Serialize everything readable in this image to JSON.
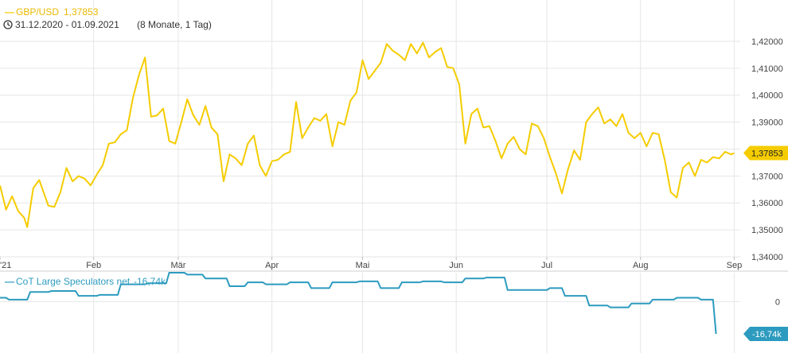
{
  "colors": {
    "main_series": "#f5cc00",
    "sub_series": "#2d9bbf",
    "grid": "#e6e6e6",
    "axis_text": "#444444",
    "legend_main_text": "#e9b800",
    "legend_date_text": "#333333"
  },
  "legend": {
    "marker_main": "—",
    "series_name": "GBP/USD",
    "last_value": "1,37853",
    "clock_icon": "clock-icon",
    "date_range": "31.12.2020 - 01.09.2021",
    "period": "(8 Monate, 1 Tag)",
    "marker_sub": "—",
    "sub_series_name": "CoT Large Speculators net",
    "sub_last_value": "-16,74k"
  },
  "last_price_tag": "1,37853",
  "sub_last_tag": "-16,74k",
  "chart_data": [
    {
      "type": "line",
      "series": [
        {
          "name": "GBP/USD"
        }
      ],
      "x_ticks": [
        "'21",
        "Feb",
        "Mär",
        "Apr",
        "Mai",
        "Jun",
        "Jul",
        "Aug",
        "Sep"
      ],
      "x_tick_days": [
        0,
        31,
        59,
        90,
        120,
        151,
        181,
        212,
        243
      ],
      "y_ticks": [
        "1,34000",
        "1,35000",
        "1,36000",
        "1,37000",
        "1,38000",
        "1,39000",
        "1,40000",
        "1,41000",
        "1,42000"
      ],
      "ylim": [
        1.34,
        1.425
      ],
      "xlim": [
        0,
        245
      ],
      "grid": true,
      "x": [
        0,
        2,
        4,
        6,
        8,
        9,
        11,
        13,
        16,
        18,
        20,
        22,
        24,
        26,
        28,
        30,
        32,
        34,
        36,
        38,
        40,
        42,
        44,
        46,
        48,
        50,
        52,
        54,
        56,
        58,
        60,
        62,
        64,
        66,
        68,
        70,
        72,
        74,
        76,
        78,
        80,
        82,
        84,
        86,
        88,
        90,
        92,
        94,
        96,
        98,
        100,
        102,
        104,
        106,
        108,
        110,
        112,
        114,
        116,
        118,
        120,
        122,
        124,
        126,
        128,
        130,
        132,
        134,
        136,
        138,
        140,
        142,
        144,
        146,
        148,
        150,
        152,
        154,
        156,
        158,
        160,
        162,
        164,
        166,
        168,
        170,
        172,
        174,
        176,
        178,
        180,
        182,
        184,
        186,
        188,
        190,
        192,
        194,
        196,
        198,
        200,
        202,
        204,
        206,
        208,
        210,
        212,
        214,
        216,
        218,
        220,
        222,
        224,
        226,
        228,
        230,
        232,
        234,
        236,
        238,
        240,
        242,
        243
      ],
      "values": [
        1.3665,
        1.3575,
        1.3625,
        1.357,
        1.3545,
        1.351,
        1.3655,
        1.3685,
        1.359,
        1.3585,
        1.364,
        1.373,
        1.368,
        1.37,
        1.369,
        1.3665,
        1.3705,
        1.374,
        1.382,
        1.3825,
        1.3855,
        1.387,
        1.399,
        1.4075,
        1.414,
        1.392,
        1.3925,
        1.395,
        1.383,
        1.382,
        1.39,
        1.3985,
        1.3925,
        1.389,
        1.396,
        1.388,
        1.3855,
        1.368,
        1.378,
        1.3765,
        1.374,
        1.382,
        1.385,
        1.374,
        1.37,
        1.3755,
        1.376,
        1.378,
        1.379,
        1.3975,
        1.384,
        1.388,
        1.3915,
        1.3905,
        1.393,
        1.381,
        1.39,
        1.389,
        1.398,
        1.401,
        1.413,
        1.406,
        1.409,
        1.412,
        1.419,
        1.4165,
        1.415,
        1.413,
        1.419,
        1.4155,
        1.4195,
        1.414,
        1.416,
        1.4175,
        1.4105,
        1.41,
        1.404,
        1.382,
        1.393,
        1.395,
        1.388,
        1.3885,
        1.383,
        1.3765,
        1.382,
        1.3845,
        1.38,
        1.378,
        1.3895,
        1.3885,
        1.384,
        1.377,
        1.371,
        1.3635,
        1.3725,
        1.3795,
        1.376,
        1.39,
        1.393,
        1.3955,
        1.3895,
        1.391,
        1.3885,
        1.393,
        1.386,
        1.384,
        1.386,
        1.381,
        1.386,
        1.3855,
        1.376,
        1.364,
        1.362,
        1.373,
        1.375,
        1.37,
        1.376,
        1.375,
        1.377,
        1.3765,
        1.379,
        1.378,
        1.37853
      ]
    },
    {
      "type": "line",
      "series": [
        {
          "name": "CoT Large Speculators net"
        }
      ],
      "y_ticks": [
        "0"
      ],
      "y_tick_values": [
        0
      ],
      "ylim": [
        -25,
        15
      ],
      "xlim": [
        0,
        245
      ],
      "grid": true,
      "x": [
        0,
        2,
        3,
        9,
        10,
        16,
        17,
        25,
        26,
        32,
        33,
        39,
        40,
        48,
        49,
        55,
        56,
        61,
        62,
        67,
        68,
        75,
        76,
        81,
        82,
        87,
        88,
        95,
        96,
        102,
        103,
        109,
        110,
        118,
        119,
        125,
        126,
        132,
        133,
        139,
        140,
        146,
        147,
        153,
        154,
        160,
        161,
        167,
        168,
        181,
        182,
        186,
        187,
        194,
        195,
        201,
        202,
        208,
        209,
        215,
        216,
        223,
        224,
        231,
        232,
        236,
        237
      ],
      "values": [
        2,
        2,
        1,
        1,
        5,
        5,
        5.5,
        5.5,
        3,
        3,
        3.5,
        3.5,
        9,
        9,
        9.5,
        9.5,
        15,
        15,
        14,
        14,
        12,
        12,
        8,
        8,
        10,
        10,
        9,
        9,
        10,
        10,
        7,
        7,
        10,
        10,
        10.5,
        10.5,
        7,
        7,
        10,
        10,
        10.5,
        10.5,
        10,
        10,
        12,
        12,
        12.5,
        12.5,
        6,
        6,
        7,
        7,
        3,
        3,
        -2,
        -2,
        -3,
        -3,
        -1,
        -1,
        1,
        1,
        2,
        2,
        1,
        1,
        -16.74
      ]
    }
  ]
}
